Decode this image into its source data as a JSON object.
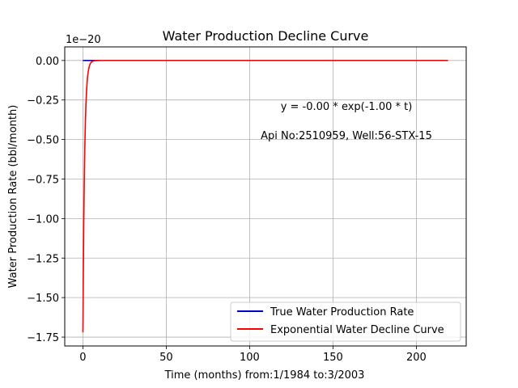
{
  "chart_data": {
    "type": "line",
    "title": "Water Production Decline Curve",
    "xlabel": "Time (months) from:1/1984 to:3/2003",
    "ylabel": "Water Production Rate (bbl/month)",
    "offset_text": "1e−20",
    "xlim": [
      -10.9,
      229.9
    ],
    "ylim": [
      -1.806,
      0.086
    ],
    "x_ticks": [
      0,
      50,
      100,
      150,
      200
    ],
    "x_tick_labels": [
      "0",
      "50",
      "100",
      "150",
      "200"
    ],
    "y_ticks": [
      0.0,
      -0.25,
      -0.5,
      -0.75,
      -1.0,
      -1.25,
      -1.5,
      -1.75
    ],
    "y_tick_labels": [
      "0.00",
      "−0.25",
      "−0.50",
      "−0.75",
      "−1.00",
      "−1.25",
      "−1.50",
      "−1.75"
    ],
    "grid": true,
    "legend_position": "lower-right",
    "annotations": [
      "y = -0.00 * exp(-1.00 * t)",
      "Api No:2510959, Well:56-STX-15"
    ],
    "series": [
      {
        "name": "True Water Production Rate",
        "color": "#0000cc",
        "x": [
          0,
          10
        ],
        "y": [
          0,
          0
        ]
      },
      {
        "name": "Exponential Water Decline Curve",
        "color": "#ff0000",
        "model": "exponential",
        "a": -1.72,
        "b": 1.0,
        "x_start": 0,
        "x_end": 219
      }
    ]
  }
}
